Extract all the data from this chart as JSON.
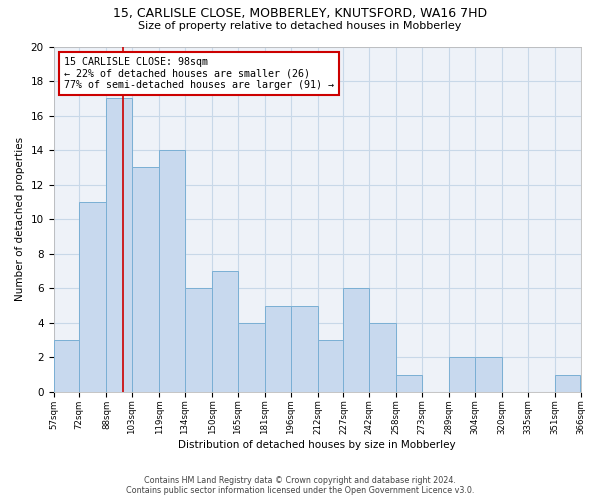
{
  "title1": "15, CARLISLE CLOSE, MOBBERLEY, KNUTSFORD, WA16 7HD",
  "title2": "Size of property relative to detached houses in Mobberley",
  "xlabel": "Distribution of detached houses by size in Mobberley",
  "ylabel": "Number of detached properties",
  "bin_edges": [
    57,
    72,
    88,
    103,
    119,
    134,
    150,
    165,
    181,
    196,
    212,
    227,
    242,
    258,
    273,
    289,
    304,
    320,
    335,
    351,
    366
  ],
  "bar_heights": [
    3,
    11,
    17,
    13,
    14,
    6,
    7,
    4,
    5,
    5,
    3,
    6,
    4,
    1,
    0,
    2,
    2,
    0,
    0,
    1
  ],
  "bar_color": "#c8d9ee",
  "bar_edge_color": "#7aafd4",
  "grid_color": "#c8d8e8",
  "vline_x": 98,
  "vline_color": "#cc0000",
  "annotation_lines": [
    "15 CARLISLE CLOSE: 98sqm",
    "← 22% of detached houses are smaller (26)",
    "77% of semi-detached houses are larger (91) →"
  ],
  "annotation_box_color": "#cc0000",
  "ylim": [
    0,
    20
  ],
  "yticks": [
    0,
    2,
    4,
    6,
    8,
    10,
    12,
    14,
    16,
    18,
    20
  ],
  "footer_line1": "Contains HM Land Registry data © Crown copyright and database right 2024.",
  "footer_line2": "Contains public sector information licensed under the Open Government Licence v3.0.",
  "bg_color": "#ffffff",
  "plot_bg_color": "#eef2f8"
}
